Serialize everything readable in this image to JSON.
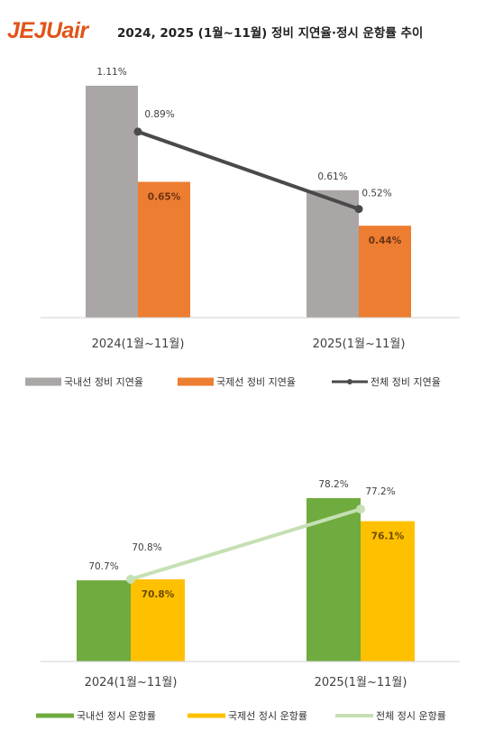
{
  "header": {
    "logo_text": "JEJUair",
    "title": "2024, 2025 (1월~11월) 정비 지연율·정시 운항률 추이"
  },
  "colors": {
    "logo": "#e1541a",
    "gray": "#aaa6a5",
    "orange": "#ed7d31",
    "dark_line": "#4a4a4a",
    "green": "#6fab3f",
    "yellow": "#ffc000",
    "light_green": "#c5e0b4",
    "axis": "#d0d0d0"
  },
  "chart_data": [
    {
      "type": "bar",
      "categories": [
        "2024(1월~11월)",
        "2025(1월~11월)"
      ],
      "ylim": [
        0,
        1.2
      ],
      "series": [
        {
          "name": "국내선 정비 지연율",
          "kind": "bar",
          "values": [
            1.11,
            0.61
          ],
          "labels": [
            "1.11%",
            "0.61%"
          ],
          "color": "#aaa6a5"
        },
        {
          "name": "국제선 정비 지연율",
          "kind": "bar",
          "values": [
            0.65,
            0.44
          ],
          "labels": [
            "0.65%",
            "0.44%"
          ],
          "color": "#ed7d31"
        },
        {
          "name": "전체 정비 지연율",
          "kind": "line",
          "values": [
            0.89,
            0.52
          ],
          "labels": [
            "0.89%",
            "0.52%"
          ],
          "color": "#4a4a4a"
        }
      ],
      "legend_position": "bottom",
      "grid": false
    },
    {
      "type": "bar",
      "categories": [
        "2024(1월~11월)",
        "2025(1월~11월)"
      ],
      "ylim": [
        63.3,
        79.8
      ],
      "series": [
        {
          "name": "국내선 정시 운항률",
          "kind": "bar",
          "values": [
            70.7,
            78.2
          ],
          "labels": [
            "70.7%",
            "78.2%"
          ],
          "color": "#6fab3f"
        },
        {
          "name": "국제선 정시 운항률",
          "kind": "bar",
          "values": [
            70.8,
            76.1
          ],
          "labels": [
            "70.8%",
            "76.1%"
          ],
          "color": "#ffc000"
        },
        {
          "name": "전체 정시 운항률",
          "kind": "line",
          "values": [
            70.8,
            77.2
          ],
          "labels": [
            "70.8%",
            "77.2%"
          ],
          "color": "#c5e0b4"
        }
      ],
      "legend_position": "bottom",
      "grid": false
    }
  ]
}
